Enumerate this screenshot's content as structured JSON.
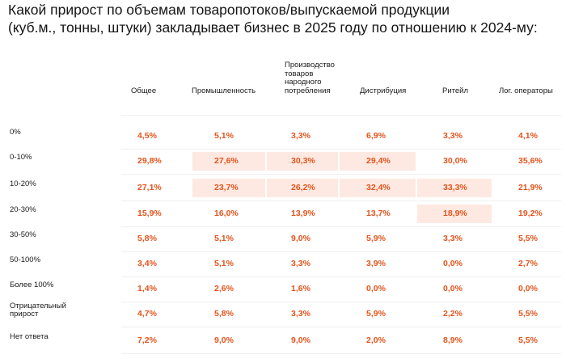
{
  "title": "Какой прирост по объемам товаропотоков/выпускаемой продукции\n(куб.м., тонны, штуки) закладывает бизнес в 2025 году по отношению к 2024-му:",
  "chart_data": {
    "type": "table",
    "columns": [
      "Общее",
      "Промышленность",
      "Производство\nтоваров\nнародного\nпотребления",
      "Дистрибуция",
      "Ритейл",
      "Лог. операторы"
    ],
    "rows": [
      {
        "label": "0%",
        "values": [
          "4,5%",
          "5,1%",
          "3,3%",
          "6,9%",
          "3,3%",
          "4,1%"
        ]
      },
      {
        "label": "0-10%",
        "values": [
          "29,8%",
          "27,6%",
          "30,3%",
          "29,4%",
          "30,0%",
          "35,6%"
        ]
      },
      {
        "label": "10-20%",
        "values": [
          "27,1%",
          "23,7%",
          "26,2%",
          "32,4%",
          "33,3%",
          "21,9%"
        ]
      },
      {
        "label": "20-30%",
        "values": [
          "15,9%",
          "16,0%",
          "13,9%",
          "13,7%",
          "18,9%",
          "19,2%"
        ]
      },
      {
        "label": "30-50%",
        "values": [
          "5,8%",
          "5,1%",
          "9,0%",
          "5,9%",
          "3,3%",
          "5,5%"
        ]
      },
      {
        "label": "50-100%",
        "values": [
          "3,4%",
          "5,1%",
          "3,3%",
          "3,9%",
          "0,0%",
          "2,7%"
        ]
      },
      {
        "label": "Более 100%",
        "values": [
          "1,4%",
          "2,6%",
          "1,6%",
          "0,0%",
          "0,0%",
          "0,0%"
        ]
      },
      {
        "label": "Отрицательный\nприрост",
        "values": [
          "4,7%",
          "5,8%",
          "3,3%",
          "5,9%",
          "2,2%",
          "5,5%"
        ]
      },
      {
        "label": "Нет ответа",
        "values": [
          "7,2%",
          "9,0%",
          "9,0%",
          "2,0%",
          "8,9%",
          "5,5%"
        ]
      }
    ],
    "highlight_color": "#fde9e1",
    "value_color": "#e2541d",
    "highlighted_cells": [
      [
        1,
        1
      ],
      [
        1,
        2
      ],
      [
        1,
        3
      ],
      [
        2,
        1
      ],
      [
        2,
        2
      ],
      [
        2,
        3
      ],
      [
        2,
        4
      ],
      [
        3,
        4
      ]
    ]
  }
}
